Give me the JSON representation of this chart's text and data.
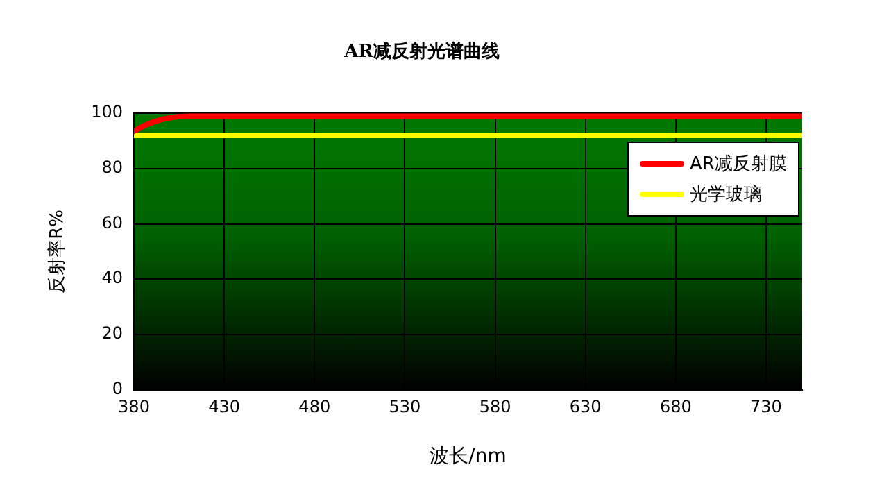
{
  "chart_data": {
    "type": "line",
    "title": "AR减反射光谱曲线",
    "xlabel": "波长/nm",
    "ylabel": "反射率R%",
    "xlim": [
      380,
      750
    ],
    "xticks": [
      380,
      430,
      480,
      530,
      580,
      630,
      680,
      730
    ],
    "ylim": [
      0,
      100
    ],
    "yticks": [
      0,
      20,
      40,
      60,
      80,
      100
    ],
    "grid": true,
    "legend": "top right",
    "marker": "none",
    "line_style": "solid",
    "series": [
      {
        "name": "AR减反射膜",
        "color": "#ff0000",
        "x": [
          380,
          385,
          390,
          395,
          400,
          405,
          410,
          420,
          750
        ],
        "values": [
          93.5,
          95.3,
          96.7,
          97.7,
          98.4,
          98.8,
          99,
          99,
          99
        ]
      },
      {
        "name": "光学玻璃",
        "color": "#ffff00",
        "x": [
          380,
          750
        ],
        "values": [
          92,
          92
        ]
      }
    ]
  }
}
